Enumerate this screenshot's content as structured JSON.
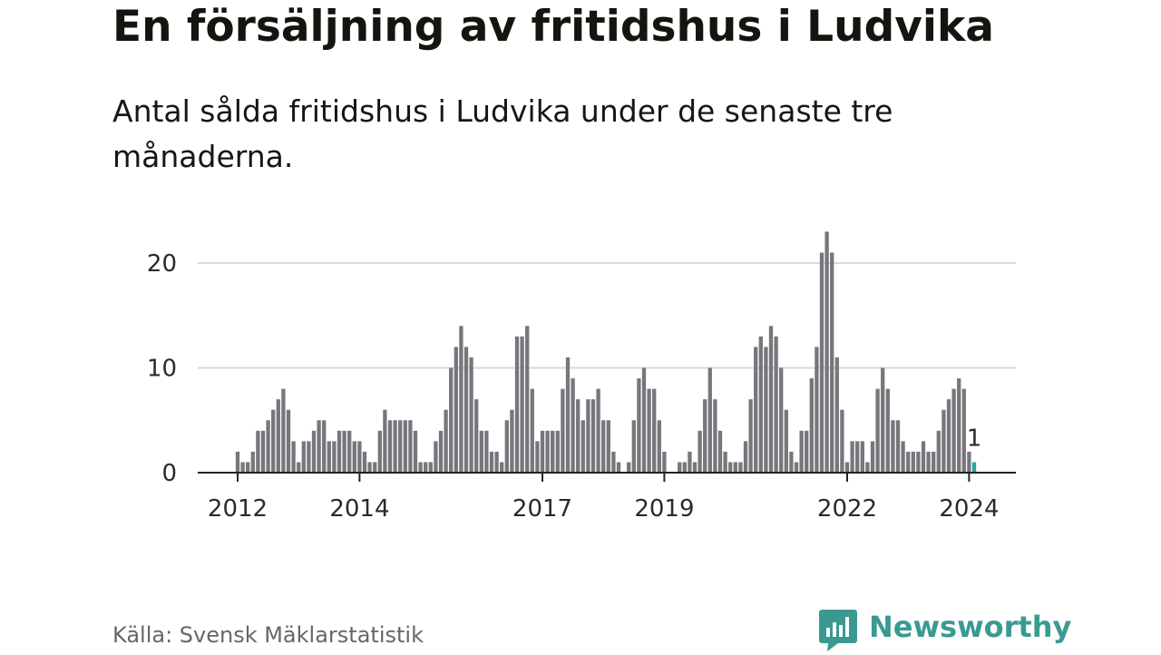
{
  "header": {
    "title": "En försäljning av fritidshus i Ludvika",
    "subtitle": "Antal sålda fritidshus i Ludvika under de senaste tre månaderna."
  },
  "footer": {
    "source": "Källa: Svensk Mäklarstatistik",
    "brand": "Newsworthy"
  },
  "colors": {
    "bar": "#77767c",
    "highlight": "#2aa59b",
    "grid": "#d9d9d9",
    "axis": "#222222",
    "brand": "#3a9a92"
  },
  "chart_data": {
    "type": "bar",
    "title": "En försäljning av fritidshus i Ludvika",
    "subtitle": "Antal sålda fritidshus i Ludvika under de senaste tre månaderna.",
    "xlabel": "",
    "ylabel": "",
    "ylim": [
      0,
      23
    ],
    "yticks": [
      0,
      10,
      20
    ],
    "grid": true,
    "legend": "none",
    "start": "2012-01",
    "x_ticks": [
      {
        "label": "2012",
        "index": 0
      },
      {
        "label": "2014",
        "index": 24
      },
      {
        "label": "2017",
        "index": 60
      },
      {
        "label": "2019",
        "index": 84
      },
      {
        "label": "2022",
        "index": 120
      },
      {
        "label": "2024",
        "index": 144
      }
    ],
    "values": [
      2,
      1,
      1,
      2,
      4,
      4,
      5,
      6,
      7,
      8,
      6,
      3,
      1,
      3,
      3,
      4,
      5,
      5,
      3,
      3,
      4,
      4,
      4,
      3,
      3,
      2,
      1,
      1,
      4,
      6,
      5,
      5,
      5,
      5,
      5,
      4,
      1,
      1,
      1,
      3,
      4,
      6,
      10,
      12,
      14,
      12,
      11,
      7,
      4,
      4,
      2,
      2,
      1,
      5,
      6,
      13,
      13,
      14,
      8,
      3,
      4,
      4,
      4,
      4,
      8,
      11,
      9,
      7,
      5,
      7,
      7,
      8,
      5,
      5,
      2,
      1,
      0,
      1,
      5,
      9,
      10,
      8,
      8,
      5,
      2,
      0,
      0,
      1,
      1,
      2,
      1,
      4,
      7,
      10,
      7,
      4,
      2,
      1,
      1,
      1,
      3,
      7,
      12,
      13,
      12,
      14,
      13,
      10,
      6,
      2,
      1,
      4,
      4,
      9,
      12,
      21,
      23,
      21,
      11,
      6,
      1,
      3,
      3,
      3,
      1,
      3,
      8,
      10,
      8,
      5,
      5,
      3,
      2,
      2,
      2,
      3,
      2,
      2,
      4,
      6,
      7,
      8,
      9,
      8,
      2,
      1
    ],
    "highlight_index": 145,
    "annotation": {
      "index": 145,
      "value": 1,
      "label": "1"
    }
  }
}
